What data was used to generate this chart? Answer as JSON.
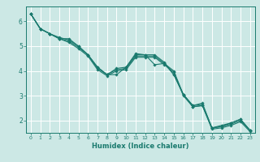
{
  "xlabel": "Humidex (Indice chaleur)",
  "ylabel": "",
  "bg_color": "#cce8e5",
  "grid_color": "#ffffff",
  "line_color": "#1a7a6e",
  "xlim": [
    -0.5,
    23.5
  ],
  "ylim": [
    1.5,
    6.6
  ],
  "yticks": [
    2,
    3,
    4,
    5,
    6
  ],
  "xticks": [
    0,
    1,
    2,
    3,
    4,
    5,
    6,
    7,
    8,
    9,
    10,
    11,
    12,
    13,
    14,
    15,
    16,
    17,
    18,
    19,
    20,
    21,
    22,
    23
  ],
  "series": [
    [
      6.3,
      5.7,
      5.5,
      5.3,
      5.3,
      5.0,
      4.65,
      4.15,
      3.85,
      3.85,
      4.15,
      4.7,
      4.65,
      4.25,
      4.3,
      3.85,
      3.05,
      2.55,
      2.6,
      1.7,
      1.75,
      1.9,
      2.05,
      1.6
    ],
    [
      6.3,
      5.7,
      5.5,
      5.35,
      5.25,
      5.0,
      4.65,
      4.15,
      3.85,
      4.1,
      4.15,
      4.65,
      4.65,
      4.65,
      4.35,
      3.85,
      3.05,
      2.6,
      2.7,
      1.7,
      1.8,
      1.9,
      2.05,
      1.6
    ],
    [
      6.3,
      5.7,
      5.5,
      5.3,
      5.2,
      4.95,
      4.65,
      4.1,
      3.85,
      4.05,
      4.1,
      4.6,
      4.6,
      4.6,
      4.3,
      4.0,
      3.05,
      2.6,
      2.65,
      1.7,
      1.75,
      1.85,
      2.0,
      1.6
    ],
    [
      6.3,
      5.7,
      5.5,
      5.3,
      5.15,
      4.9,
      4.6,
      4.05,
      3.8,
      4.0,
      4.05,
      4.55,
      4.55,
      4.55,
      4.25,
      3.95,
      3.0,
      2.55,
      2.6,
      1.65,
      1.7,
      1.8,
      1.95,
      1.55
    ]
  ]
}
